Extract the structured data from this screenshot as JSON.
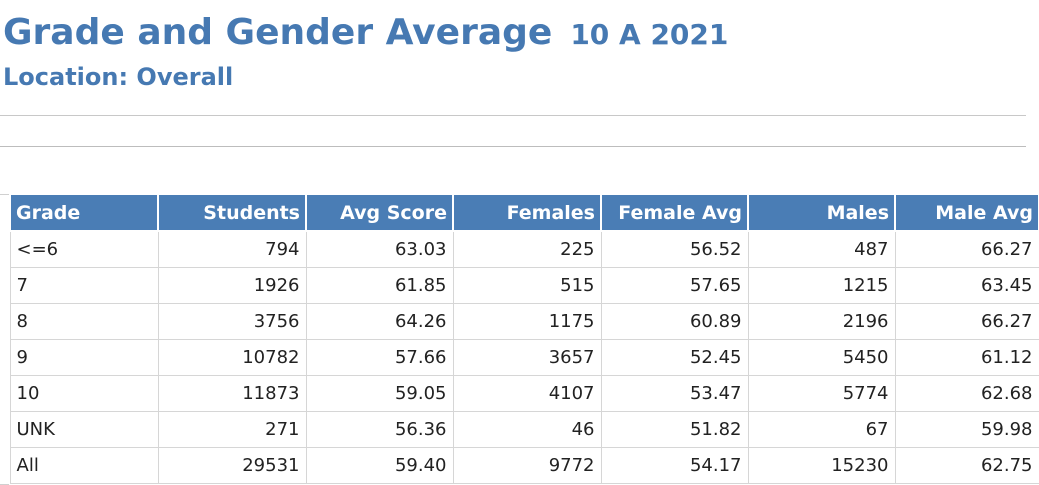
{
  "report": {
    "title": "Grade and Gender Average",
    "subtitle": "10 A 2021",
    "location": "Location: Overall"
  },
  "table": {
    "columns": [
      "Grade",
      "Students",
      "Avg Score",
      "Females",
      "Female Avg",
      "Males",
      "Male Avg"
    ],
    "rows": [
      [
        "<=6",
        "794",
        "63.03",
        "225",
        "56.52",
        "487",
        "66.27"
      ],
      [
        "7",
        "1926",
        "61.85",
        "515",
        "57.65",
        "1215",
        "63.45"
      ],
      [
        "8",
        "3756",
        "64.26",
        "1175",
        "60.89",
        "2196",
        "66.27"
      ],
      [
        "9",
        "10782",
        "57.66",
        "3657",
        "52.45",
        "5450",
        "61.12"
      ],
      [
        "10",
        "11873",
        "59.05",
        "4107",
        "53.47",
        "5774",
        "62.68"
      ],
      [
        "UNK",
        "271",
        "56.36",
        "46",
        "51.82",
        "67",
        "59.98"
      ],
      [
        "All",
        "29531",
        "59.40",
        "9772",
        "54.17",
        "15230",
        "62.75"
      ]
    ]
  },
  "colors": {
    "title": "#4679b2",
    "header_bg": "#4a7db5",
    "header_text": "#ffffff",
    "grid_line": "#d6d6d6"
  }
}
